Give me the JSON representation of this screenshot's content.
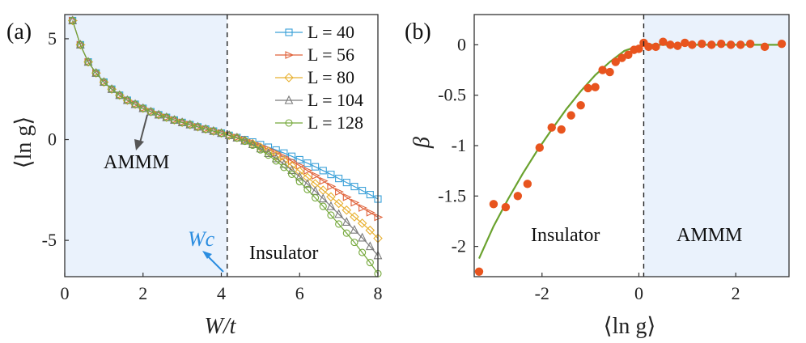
{
  "chart_data": [
    {
      "type": "line",
      "panel_label": "(a)",
      "xlabel": "W/t",
      "ylabel": "⟨ln g⟩",
      "xlim": [
        0,
        8
      ],
      "ylim": [
        -6.8,
        6.2
      ],
      "xticks": [
        "0",
        "2",
        "4",
        "6",
        "8"
      ],
      "yticks": [
        "5",
        "0",
        "-5"
      ],
      "critical_x": 4.15,
      "shaded_range": [
        0,
        4.15
      ],
      "annotations": {
        "left_region": "AMMM",
        "right_region": "Insulator",
        "critical_label": "Wc"
      },
      "x": [
        0.2,
        0.4,
        0.6,
        0.8,
        1.0,
        1.2,
        1.4,
        1.6,
        1.8,
        2.0,
        2.2,
        2.4,
        2.6,
        2.8,
        3.0,
        3.2,
        3.4,
        3.6,
        3.8,
        4.0,
        4.2,
        4.4,
        4.6,
        4.8,
        5.0,
        5.2,
        5.4,
        5.6,
        5.8,
        6.0,
        6.2,
        6.4,
        6.6,
        6.8,
        7.0,
        7.2,
        7.4,
        7.6,
        7.8,
        8.0
      ],
      "series": [
        {
          "name": "L = 40",
          "color": "#3aa0d8",
          "marker": "square",
          "values": [
            5.9,
            4.7,
            3.85,
            3.3,
            2.85,
            2.5,
            2.2,
            1.95,
            1.75,
            1.55,
            1.38,
            1.23,
            1.1,
            0.97,
            0.85,
            0.74,
            0.63,
            0.52,
            0.42,
            0.32,
            0.21,
            0.1,
            0.0,
            -0.12,
            -0.25,
            -0.38,
            -0.52,
            -0.67,
            -0.83,
            -1.0,
            -1.17,
            -1.35,
            -1.54,
            -1.73,
            -1.93,
            -2.13,
            -2.33,
            -2.53,
            -2.73,
            -2.95
          ]
        },
        {
          "name": "L = 56",
          "color": "#e0623a",
          "marker": "triangle-right",
          "values": [
            5.9,
            4.7,
            3.85,
            3.3,
            2.85,
            2.5,
            2.2,
            1.95,
            1.75,
            1.55,
            1.38,
            1.23,
            1.1,
            0.97,
            0.85,
            0.74,
            0.63,
            0.52,
            0.42,
            0.32,
            0.21,
            0.1,
            -0.02,
            -0.16,
            -0.31,
            -0.48,
            -0.66,
            -0.86,
            -1.07,
            -1.3,
            -1.54,
            -1.79,
            -2.05,
            -2.32,
            -2.59,
            -2.86,
            -3.13,
            -3.39,
            -3.62,
            -3.85
          ]
        },
        {
          "name": "L = 80",
          "color": "#e8b030",
          "marker": "diamond",
          "values": [
            5.9,
            4.7,
            3.85,
            3.3,
            2.85,
            2.5,
            2.2,
            1.95,
            1.75,
            1.55,
            1.38,
            1.23,
            1.1,
            0.97,
            0.85,
            0.74,
            0.63,
            0.52,
            0.42,
            0.32,
            0.21,
            0.1,
            -0.04,
            -0.2,
            -0.38,
            -0.58,
            -0.8,
            -1.04,
            -1.3,
            -1.58,
            -1.88,
            -2.19,
            -2.51,
            -2.84,
            -3.17,
            -3.5,
            -3.83,
            -4.15,
            -4.5,
            -4.9
          ]
        },
        {
          "name": "L = 104",
          "color": "#7a7a7a",
          "marker": "triangle-up",
          "values": [
            5.9,
            4.7,
            3.85,
            3.3,
            2.85,
            2.5,
            2.2,
            1.95,
            1.75,
            1.55,
            1.38,
            1.23,
            1.1,
            0.97,
            0.85,
            0.74,
            0.63,
            0.52,
            0.42,
            0.32,
            0.21,
            0.09,
            -0.06,
            -0.24,
            -0.45,
            -0.68,
            -0.94,
            -1.22,
            -1.52,
            -1.85,
            -2.2,
            -2.56,
            -2.93,
            -3.31,
            -3.7,
            -4.09,
            -4.48,
            -4.87,
            -5.3,
            -5.75
          ]
        },
        {
          "name": "L = 128",
          "color": "#74a83a",
          "marker": "circle",
          "values": [
            5.9,
            4.7,
            3.85,
            3.3,
            2.85,
            2.5,
            2.2,
            1.95,
            1.75,
            1.55,
            1.38,
            1.23,
            1.1,
            0.97,
            0.85,
            0.74,
            0.63,
            0.52,
            0.42,
            0.32,
            0.21,
            0.08,
            -0.08,
            -0.28,
            -0.51,
            -0.77,
            -1.06,
            -1.38,
            -1.72,
            -2.09,
            -2.48,
            -2.89,
            -3.31,
            -3.75,
            -4.19,
            -4.64,
            -5.1,
            -5.6,
            -6.1,
            -6.65
          ]
        }
      ]
    },
    {
      "type": "scatter",
      "panel_label": "(b)",
      "xlabel": "⟨ln g⟩",
      "ylabel": "β",
      "xlim": [
        -3.4,
        3.1
      ],
      "ylim": [
        -2.3,
        0.3
      ],
      "xticks": [
        "-2",
        "0",
        "2"
      ],
      "yticks": [
        "0",
        "-0.5",
        "-1",
        "-1.5",
        "-2"
      ],
      "critical_x": 0.1,
      "shaded_range": [
        0.1,
        3.1
      ],
      "annotations": {
        "left_region": "Insulator",
        "right_region": "AMMM"
      },
      "points": {
        "color": "#e8541e",
        "x": [
          -3.3,
          -3.0,
          -2.75,
          -2.5,
          -2.3,
          -2.05,
          -1.8,
          -1.6,
          -1.4,
          -1.2,
          -1.05,
          -0.9,
          -0.75,
          -0.6,
          -0.48,
          -0.35,
          -0.22,
          -0.1,
          0.0,
          0.1,
          0.2,
          0.35,
          0.5,
          0.65,
          0.8,
          0.95,
          1.1,
          1.3,
          1.5,
          1.7,
          1.9,
          2.1,
          2.3,
          2.6,
          2.95
        ],
        "y": [
          -2.25,
          -1.58,
          -1.61,
          -1.5,
          -1.38,
          -1.02,
          -0.82,
          -0.84,
          -0.7,
          -0.6,
          -0.43,
          -0.42,
          -0.25,
          -0.27,
          -0.17,
          -0.13,
          -0.1,
          -0.05,
          -0.04,
          0.02,
          -0.02,
          -0.02,
          0.03,
          0.0,
          -0.01,
          0.02,
          0.0,
          0.01,
          0.0,
          0.01,
          0.0,
          0.0,
          0.01,
          -0.02,
          0.01
        ]
      },
      "fit_line": {
        "color": "#6aa22e",
        "x": [
          -3.3,
          -3.0,
          -2.7,
          -2.4,
          -2.1,
          -1.8,
          -1.5,
          -1.2,
          -0.9,
          -0.6,
          -0.3,
          0.0,
          0.1,
          0.5,
          1.0,
          2.0,
          3.0
        ],
        "y": [
          -2.12,
          -1.8,
          -1.53,
          -1.28,
          -1.05,
          -0.84,
          -0.64,
          -0.46,
          -0.3,
          -0.17,
          -0.06,
          -0.01,
          0.0,
          0.0,
          0.0,
          0.0,
          0.0
        ]
      }
    }
  ]
}
